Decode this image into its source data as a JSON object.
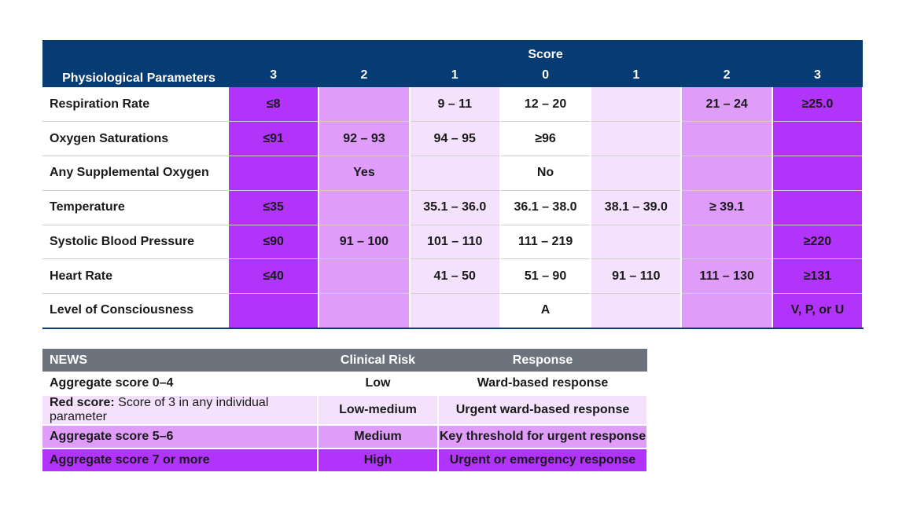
{
  "score_table": {
    "param_header": "Physiological Parameters",
    "score_title": "Score",
    "score_columns": [
      "3",
      "2",
      "1",
      "0",
      "1",
      "2",
      "3"
    ],
    "rows": [
      {
        "name": "Respiration Rate",
        "cells": [
          "≤8",
          "",
          "9 – 11",
          "12 – 20",
          "",
          "21 – 24",
          "≥25.0"
        ]
      },
      {
        "name": "Oxygen Saturations",
        "cells": [
          "≤91",
          "92 – 93",
          "94 – 95",
          "≥96",
          "",
          "",
          ""
        ]
      },
      {
        "name": "Any Supplemental Oxygen",
        "cells": [
          "",
          "Yes",
          "",
          "No",
          "",
          "",
          ""
        ]
      },
      {
        "name": "Temperature",
        "cells": [
          "≤35",
          "",
          "35.1 – 36.0",
          "36.1 – 38.0",
          "38.1 – 39.0",
          "≥ 39.1",
          ""
        ]
      },
      {
        "name": "Systolic Blood Pressure",
        "cells": [
          "≤90",
          "91 – 100",
          "101 – 110",
          "111 – 219",
          "",
          "",
          "≥220"
        ]
      },
      {
        "name": "Heart Rate",
        "cells": [
          "≤40",
          "",
          "41 – 50",
          "51 – 90",
          "91 – 110",
          "111 – 130",
          "≥131"
        ]
      },
      {
        "name": "Level of Consciousness",
        "cells": [
          "",
          "",
          "",
          "A",
          "",
          "",
          "V, P, or U"
        ]
      }
    ]
  },
  "news_table": {
    "headers": [
      "NEWS",
      "Clinical Risk",
      "Response"
    ],
    "rows": [
      {
        "label_bold": "Aggregate score 0–4",
        "label_normal": "",
        "risk": "Low",
        "response": "Ward-based response"
      },
      {
        "label_bold": "Red score:",
        "label_normal": " Score of 3 in any individual parameter",
        "risk": "Low-medium",
        "response": "Urgent ward-based response"
      },
      {
        "label_bold": "Aggregate score 5–6",
        "label_normal": "",
        "risk": "Medium",
        "response": "Key threshold for urgent response"
      },
      {
        "label_bold": "Aggregate score 7 or more",
        "label_normal": "",
        "risk": "High",
        "response": "Urgent or emergency response"
      }
    ]
  },
  "colors": {
    "header_navy": "#073b73",
    "header_grey": "#6d737c",
    "score3": "#b233fa",
    "score2": "#df9cf9",
    "score1": "#f4e1fc"
  }
}
